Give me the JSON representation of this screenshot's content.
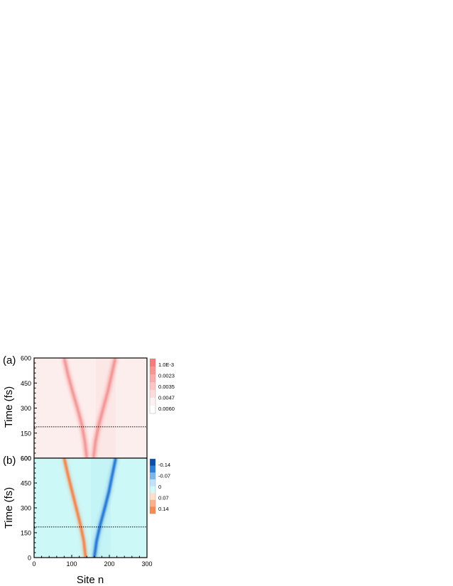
{
  "chart_data": [
    {
      "panel_label": "(a)",
      "type": "heatmap",
      "ylabel": "Time (fs)",
      "xlim": [
        0,
        300
      ],
      "ylim": [
        0,
        600
      ],
      "yticks": [
        150,
        300,
        450,
        600
      ],
      "ytick_labels": [
        "150",
        "300",
        "450",
        "600"
      ],
      "bottom_tick_label": "600",
      "background_color": "#fdeeee",
      "trajectories": [
        {
          "points": [
            [
              140,
              0
            ],
            [
              135,
              100
            ],
            [
              127,
              200
            ],
            [
              115,
              300
            ],
            [
              102,
              400
            ],
            [
              90,
              500
            ],
            [
              80,
              600
            ]
          ],
          "color": "#f08585"
        },
        {
          "points": [
            [
              158,
              0
            ],
            [
              163,
              100
            ],
            [
              172,
              200
            ],
            [
              184,
              300
            ],
            [
              196,
              400
            ],
            [
              206,
              500
            ],
            [
              216,
              600
            ]
          ],
          "color": "#f08585"
        }
      ],
      "reference_line_time": 188,
      "colorbar": {
        "labels": [
          "1.0E-3",
          "0.0023",
          "0.0035",
          "0.0047",
          "0.0060"
        ],
        "colors": [
          "#f87a7a",
          "#f99494",
          "#fbabab",
          "#fcc4c4",
          "#fddcdc",
          "#fef1f1",
          "#ffffff"
        ]
      }
    },
    {
      "panel_label": "(b)",
      "type": "heatmap",
      "xlabel": "Site n",
      "ylabel": "Time (fs)",
      "xlim": [
        0,
        300
      ],
      "ylim": [
        0,
        600
      ],
      "xticks": [
        0,
        100,
        200,
        300
      ],
      "xtick_labels": [
        "0",
        "100",
        "200",
        "300"
      ],
      "yticks": [
        0,
        150,
        300,
        450,
        600
      ],
      "ytick_labels": [
        "0",
        "150",
        "300",
        "450",
        "600"
      ],
      "background_color": "#cdf8f8",
      "trajectories": [
        {
          "points": [
            [
              137,
              0
            ],
            [
              132,
              100
            ],
            [
              123,
              200
            ],
            [
              112,
              300
            ],
            [
              101,
              400
            ],
            [
              90,
              500
            ],
            [
              80,
              600
            ]
          ],
          "color": "#f47f45"
        },
        {
          "points": [
            [
              160,
              0
            ],
            [
              166,
              100
            ],
            [
              176,
              200
            ],
            [
              188,
              300
            ],
            [
              199,
              400
            ],
            [
              208,
              500
            ],
            [
              217,
              600
            ]
          ],
          "color": "#1a6fd1"
        }
      ],
      "reference_line_time": 185,
      "colorbar": {
        "labels": [
          "-0.14",
          "-0.07",
          "0",
          "0.07",
          "0.14"
        ],
        "colors": [
          "#0a4fa6",
          "#2a7fd8",
          "#7bb6ee",
          "#bfe3f8",
          "#d2f8f8",
          "#fde0cc",
          "#fbb08c",
          "#f78a50"
        ]
      }
    }
  ]
}
